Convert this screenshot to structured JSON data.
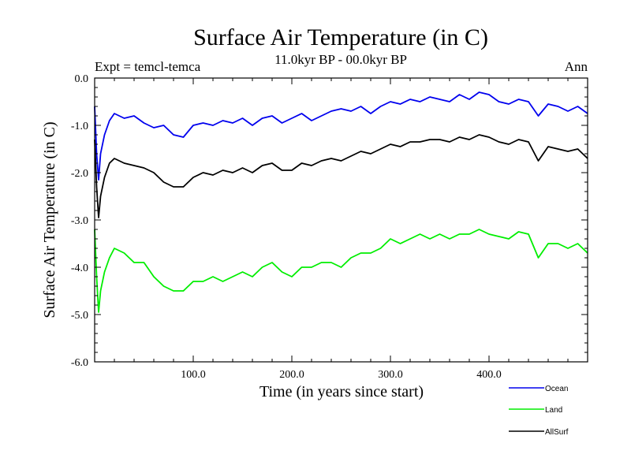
{
  "chart_data": {
    "type": "line",
    "title": "Surface Air Temperature (in C)",
    "subtitle": "11.0kyr BP - 00.0kyr BP",
    "left_annotation": "Expt = temcl-temca",
    "right_annotation": "Ann",
    "xlabel": "Time (in years since start)",
    "ylabel": "Surface Air Temperature (in C)",
    "xlim": [
      0,
      500
    ],
    "ylim": [
      -6.0,
      0.0
    ],
    "x_ticks": [
      100,
      200,
      300,
      400
    ],
    "x_tick_labels": [
      "100.0",
      "200.0",
      "300.0",
      "400.0"
    ],
    "y_ticks": [
      0,
      -1,
      -2,
      -3,
      -4,
      -5,
      -6
    ],
    "y_tick_labels": [
      "0.0",
      "-1.0",
      "-2.0",
      "-3.0",
      "-4.0",
      "-5.0",
      "-6.0"
    ],
    "legend_position": "bottom-right",
    "series": [
      {
        "name": "Ocean",
        "color": "#0000ee",
        "x": [
          0,
          2,
          4,
          6,
          10,
          15,
          20,
          30,
          40,
          50,
          60,
          70,
          80,
          90,
          100,
          110,
          120,
          130,
          140,
          150,
          160,
          170,
          180,
          190,
          200,
          210,
          220,
          230,
          240,
          250,
          260,
          270,
          280,
          290,
          300,
          310,
          320,
          330,
          340,
          350,
          360,
          370,
          380,
          390,
          400,
          410,
          420,
          430,
          440,
          450,
          460,
          470,
          480,
          490,
          500
        ],
        "values": [
          -0.6,
          -1.6,
          -2.15,
          -1.6,
          -1.2,
          -0.9,
          -0.75,
          -0.85,
          -0.8,
          -0.95,
          -1.05,
          -1.0,
          -1.2,
          -1.25,
          -1.0,
          -0.95,
          -1.0,
          -0.9,
          -0.95,
          -0.85,
          -1.0,
          -0.85,
          -0.8,
          -0.95,
          -0.85,
          -0.75,
          -0.9,
          -0.8,
          -0.7,
          -0.65,
          -0.7,
          -0.6,
          -0.75,
          -0.6,
          -0.5,
          -0.55,
          -0.45,
          -0.5,
          -0.4,
          -0.45,
          -0.5,
          -0.35,
          -0.45,
          -0.3,
          -0.35,
          -0.5,
          -0.55,
          -0.45,
          -0.5,
          -0.8,
          -0.55,
          -0.6,
          -0.7,
          -0.6,
          -0.75
        ]
      },
      {
        "name": "Land",
        "color": "#00ee00",
        "x": [
          0,
          2,
          4,
          6,
          10,
          15,
          20,
          30,
          40,
          50,
          60,
          70,
          80,
          90,
          100,
          110,
          120,
          130,
          140,
          150,
          160,
          170,
          180,
          190,
          200,
          210,
          220,
          230,
          240,
          250,
          260,
          270,
          280,
          290,
          300,
          310,
          320,
          330,
          340,
          350,
          360,
          370,
          380,
          390,
          400,
          410,
          420,
          430,
          440,
          450,
          460,
          470,
          480,
          490,
          500
        ],
        "values": [
          -3.2,
          -4.2,
          -4.95,
          -4.5,
          -4.1,
          -3.8,
          -3.6,
          -3.7,
          -3.9,
          -3.9,
          -4.2,
          -4.4,
          -4.5,
          -4.5,
          -4.3,
          -4.3,
          -4.2,
          -4.3,
          -4.2,
          -4.1,
          -4.2,
          -4.0,
          -3.9,
          -4.1,
          -4.2,
          -4.0,
          -4.0,
          -3.9,
          -3.9,
          -4.0,
          -3.8,
          -3.7,
          -3.7,
          -3.6,
          -3.4,
          -3.5,
          -3.4,
          -3.3,
          -3.4,
          -3.3,
          -3.4,
          -3.3,
          -3.3,
          -3.2,
          -3.3,
          -3.35,
          -3.4,
          -3.25,
          -3.3,
          -3.8,
          -3.5,
          -3.5,
          -3.6,
          -3.5,
          -3.7
        ]
      },
      {
        "name": "AllSurf",
        "color": "#000000",
        "x": [
          0,
          2,
          4,
          6,
          10,
          15,
          20,
          30,
          40,
          50,
          60,
          70,
          80,
          90,
          100,
          110,
          120,
          130,
          140,
          150,
          160,
          170,
          180,
          190,
          200,
          210,
          220,
          230,
          240,
          250,
          260,
          270,
          280,
          290,
          300,
          310,
          320,
          330,
          340,
          350,
          360,
          370,
          380,
          390,
          400,
          410,
          420,
          430,
          440,
          450,
          460,
          470,
          480,
          490,
          500
        ],
        "values": [
          -1.3,
          -2.3,
          -2.95,
          -2.5,
          -2.1,
          -1.8,
          -1.7,
          -1.8,
          -1.85,
          -1.9,
          -2.0,
          -2.2,
          -2.3,
          -2.3,
          -2.1,
          -2.0,
          -2.05,
          -1.95,
          -2.0,
          -1.9,
          -2.0,
          -1.85,
          -1.8,
          -1.95,
          -1.95,
          -1.8,
          -1.85,
          -1.75,
          -1.7,
          -1.75,
          -1.65,
          -1.55,
          -1.6,
          -1.5,
          -1.4,
          -1.45,
          -1.35,
          -1.35,
          -1.3,
          -1.3,
          -1.35,
          -1.25,
          -1.3,
          -1.2,
          -1.25,
          -1.35,
          -1.4,
          -1.3,
          -1.35,
          -1.75,
          -1.45,
          -1.5,
          -1.55,
          -1.5,
          -1.7
        ]
      }
    ]
  }
}
